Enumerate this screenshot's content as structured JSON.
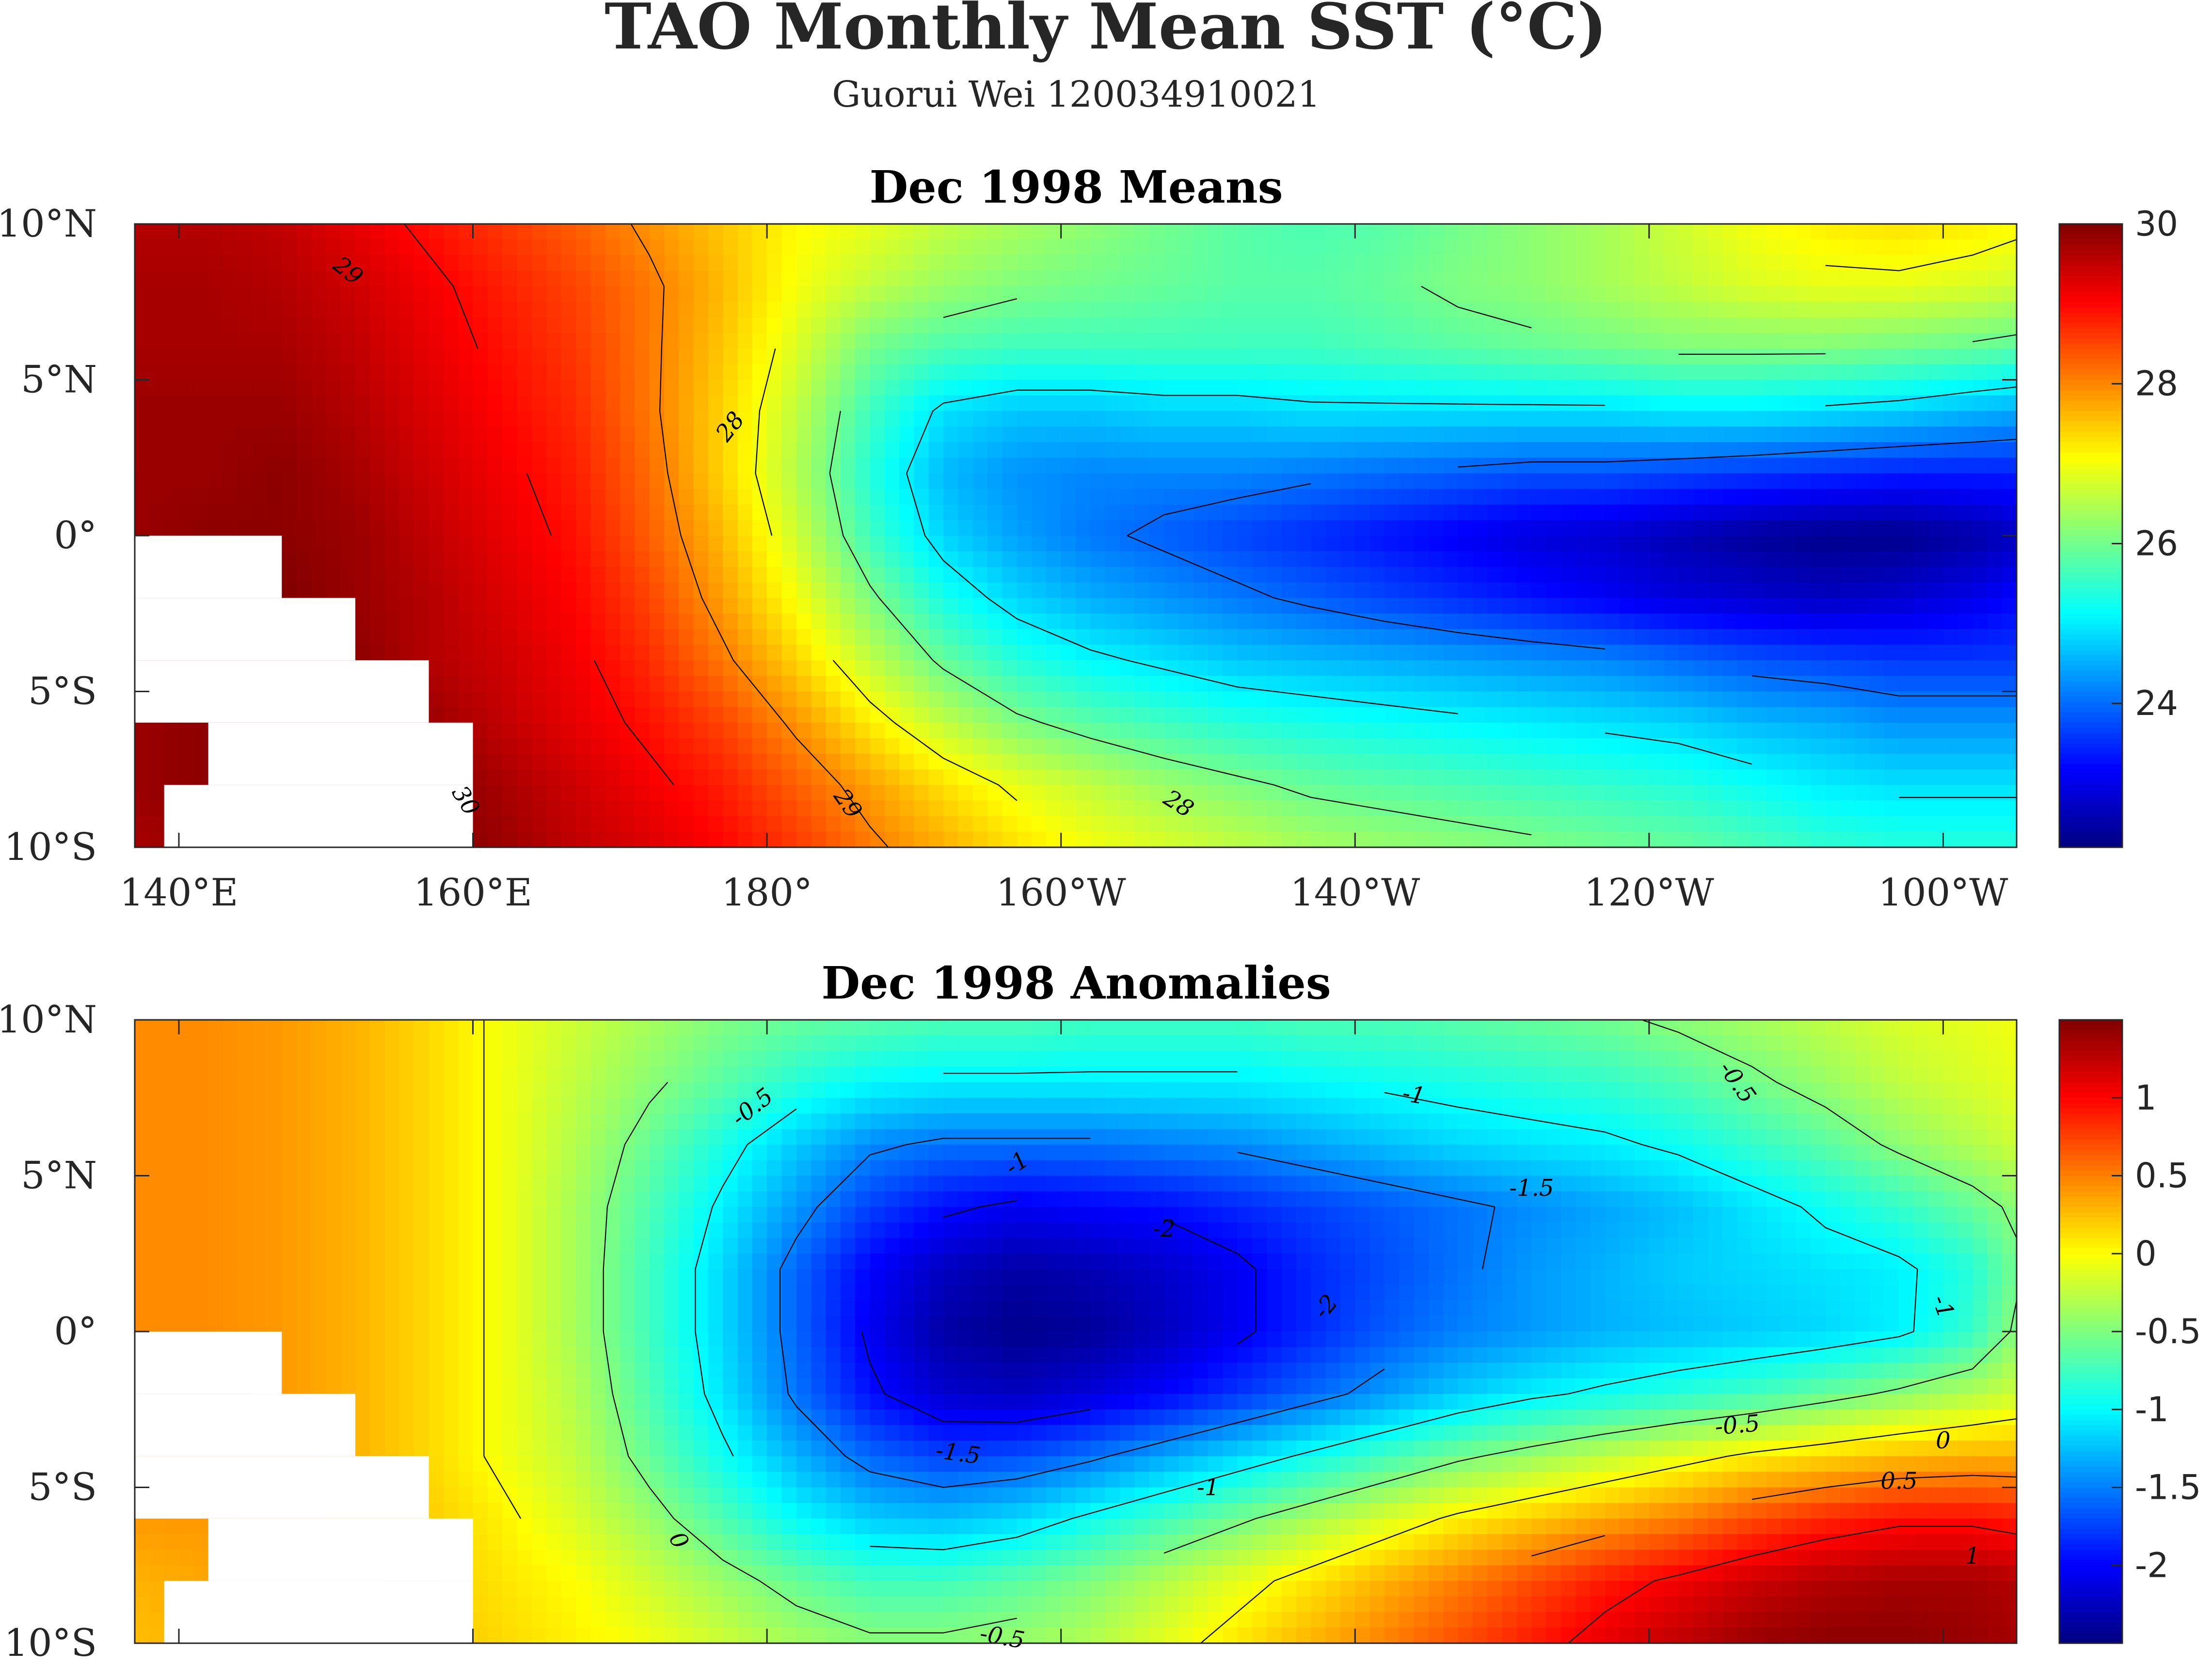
{
  "figure": {
    "title": "TAO Monthly Mean SST (°C)",
    "subtitle": "Guorui Wei 120034910021"
  },
  "chart_data": [
    {
      "type": "heatmap",
      "title": "Dec 1998 Means",
      "colormap": "jet",
      "x_ticks": [
        137,
        165,
        180,
        195,
        215,
        240,
        257
      ],
      "x_tick_labels": [
        "140°E",
        "160°E",
        "180°",
        "160°W",
        "140°W",
        "120°W",
        "100°W"
      ],
      "y_ticks": [
        10,
        5,
        0,
        -5,
        -10
      ],
      "y_tick_labels": [
        "10°N",
        "5°N",
        "0°",
        "5°S",
        "10°S"
      ],
      "xlim": [
        137,
        265
      ],
      "ylim": [
        -10,
        10
      ],
      "x_label_ticks": [
        140,
        160,
        180,
        200,
        220,
        240,
        260
      ],
      "colorbar": {
        "range": [
          22.2,
          30
        ],
        "ticks": [
          24,
          26,
          28,
          30
        ],
        "tick_labels": [
          "24",
          "26",
          "28",
          "30"
        ]
      },
      "contour_levels": [
        24,
        25,
        26,
        27,
        28,
        29,
        30
      ],
      "contour_labels": [
        {
          "text": "29",
          "lon": 151.5,
          "lat": 8.5,
          "angle": 38
        },
        {
          "text": "28",
          "lon": 177.5,
          "lat": 3.5,
          "angle": -52
        },
        {
          "text": "30",
          "lon": 159.5,
          "lat": -8.5,
          "angle": 58
        },
        {
          "text": "29",
          "lon": 185.5,
          "lat": -8.6,
          "angle": 55
        },
        {
          "text": "28",
          "lon": 208,
          "lat": -8.6,
          "angle": 32
        }
      ],
      "grid": {
        "lons": [
          137,
          142,
          147,
          152,
          157,
          162,
          167,
          172,
          177,
          182,
          187,
          192,
          197,
          202,
          207,
          212,
          217,
          222,
          227,
          232,
          237,
          242,
          247,
          252,
          257,
          262,
          265
        ],
        "lats": [
          10,
          8,
          6,
          4,
          2,
          0,
          -2,
          -4,
          -6,
          -8,
          -10
        ],
        "values": [
          [
            29.6,
            29.6,
            29.5,
            29.2,
            28.9,
            28.6,
            28.3,
            27.9,
            27.5,
            27.1,
            26.9,
            26.6,
            26.4,
            26.2,
            26.0,
            25.8,
            25.7,
            25.8,
            26.0,
            26.2,
            26.4,
            26.7,
            27.0,
            27.2,
            27.3,
            27.2,
            27.1
          ],
          [
            29.7,
            29.7,
            29.6,
            29.4,
            29.1,
            28.8,
            28.5,
            28.1,
            27.6,
            27.0,
            26.6,
            26.3,
            26.1,
            26.0,
            25.9,
            25.8,
            25.8,
            25.9,
            26.1,
            26.2,
            26.4,
            26.6,
            26.8,
            26.9,
            26.9,
            26.8,
            26.7
          ],
          [
            29.7,
            29.7,
            29.7,
            29.5,
            29.2,
            28.9,
            28.6,
            28.1,
            27.5,
            26.8,
            26.0,
            25.7,
            25.6,
            25.6,
            25.6,
            25.6,
            25.6,
            25.7,
            25.8,
            25.9,
            26.0,
            26.1,
            26.1,
            26.1,
            26.0,
            25.9,
            25.8
          ],
          [
            29.8,
            29.8,
            29.8,
            29.6,
            29.3,
            29.0,
            28.7,
            28.1,
            27.4,
            26.6,
            25.6,
            24.9,
            24.7,
            24.7,
            24.8,
            24.8,
            24.9,
            24.9,
            24.9,
            24.9,
            24.9,
            25.0,
            25.0,
            24.9,
            24.8,
            24.6,
            24.5
          ],
          [
            29.8,
            29.8,
            29.9,
            29.7,
            29.4,
            29.1,
            28.8,
            28.2,
            27.4,
            26.5,
            25.4,
            24.6,
            24.3,
            24.2,
            24.2,
            24.2,
            24.1,
            24.0,
            23.9,
            23.8,
            23.8,
            23.7,
            23.6,
            23.5,
            23.4,
            23.4,
            23.4
          ],
          [
            29.8,
            29.9,
            29.9,
            29.8,
            29.5,
            29.2,
            28.9,
            28.3,
            27.6,
            26.7,
            25.6,
            24.8,
            24.4,
            24.1,
            23.9,
            23.7,
            23.5,
            23.3,
            23.1,
            22.9,
            22.8,
            22.6,
            22.4,
            22.3,
            22.3,
            22.5,
            22.7
          ],
          [
            29.8,
            29.9,
            30.0,
            29.8,
            29.6,
            29.3,
            29.0,
            28.5,
            27.8,
            27.0,
            26.1,
            25.3,
            24.8,
            24.5,
            24.3,
            24.1,
            23.9,
            23.7,
            23.5,
            23.3,
            23.1,
            22.9,
            22.8,
            22.7,
            22.8,
            23.0,
            23.2
          ],
          [
            29.8,
            29.9,
            30.0,
            29.9,
            29.6,
            29.4,
            29.1,
            28.7,
            28.1,
            27.4,
            26.6,
            25.9,
            25.4,
            25.1,
            24.9,
            24.7,
            24.6,
            24.5,
            24.4,
            24.3,
            24.2,
            24.0,
            23.8,
            23.7,
            23.6,
            23.6,
            23.6
          ],
          [
            29.8,
            29.9,
            30.0,
            30.0,
            29.8,
            29.5,
            29.2,
            28.9,
            28.5,
            27.9,
            27.2,
            26.6,
            26.1,
            25.8,
            25.6,
            25.4,
            25.3,
            25.2,
            25.1,
            25.0,
            24.9,
            24.8,
            24.6,
            24.5,
            24.3,
            24.3,
            24.3
          ],
          [
            29.8,
            29.9,
            30.0,
            30.1,
            30.0,
            29.7,
            29.4,
            29.1,
            28.8,
            28.3,
            27.8,
            27.3,
            26.9,
            26.6,
            26.3,
            26.1,
            25.9,
            25.8,
            25.7,
            25.6,
            25.5,
            25.4,
            25.2,
            25.0,
            24.9,
            24.9,
            24.9
          ],
          [
            29.7,
            29.8,
            29.9,
            30.1,
            30.0,
            29.8,
            29.5,
            29.3,
            29.0,
            28.6,
            28.1,
            27.7,
            27.3,
            27.0,
            26.8,
            26.6,
            26.4,
            26.3,
            26.2,
            26.1,
            26.0,
            25.9,
            25.7,
            25.5,
            25.4,
            25.4,
            25.4
          ]
        ]
      },
      "land_mask_cells": [
        {
          "lon0": 137,
          "lon1": 147,
          "lat0": 0,
          "lat1": -2
        },
        {
          "lon0": 137,
          "lon1": 152,
          "lat0": -2,
          "lat1": -4
        },
        {
          "lon0": 137,
          "lon1": 157,
          "lat0": -4,
          "lat1": -6
        },
        {
          "lon0": 142,
          "lon1": 160,
          "lat0": -6,
          "lat1": -8
        },
        {
          "lon0": 139,
          "lon1": 160,
          "lat0": -8,
          "lat1": -10
        }
      ]
    },
    {
      "type": "heatmap",
      "title": "Dec 1998 Anomalies",
      "colormap": "jet",
      "x_ticks": [
        137,
        165,
        180,
        195,
        215,
        240,
        257
      ],
      "y_ticks": [
        10,
        5,
        0,
        -5,
        -10
      ],
      "y_tick_labels": [
        "10°N",
        "5°N",
        "0°",
        "5°S",
        "10°S"
      ],
      "xlim": [
        137,
        265
      ],
      "ylim": [
        -10,
        10
      ],
      "colorbar": {
        "range": [
          -2.5,
          1.5
        ],
        "ticks": [
          1,
          0.5,
          0,
          -0.5,
          -1,
          -1.5,
          -2
        ],
        "tick_labels": [
          "1",
          "0.5",
          "0",
          "-0.5",
          "-1",
          "-1.5",
          "-2"
        ]
      },
      "contour_levels": [
        -2,
        -1.5,
        -1,
        -0.5,
        0,
        0.5,
        1
      ],
      "contour_labels": [
        {
          "text": "-0.5",
          "lon": 179,
          "lat": 7.2,
          "angle": -38
        },
        {
          "text": "-1",
          "lon": 197,
          "lat": 5.4,
          "angle": -35
        },
        {
          "text": "-1",
          "lon": 224,
          "lat": 7.6,
          "angle": 10
        },
        {
          "text": "-1.5",
          "lon": 232,
          "lat": 4.6,
          "angle": 0
        },
        {
          "text": "-2",
          "lon": 207,
          "lat": 3.3,
          "angle": 0
        },
        {
          "text": "-2",
          "lon": 218,
          "lat": 0.8,
          "angle": -50
        },
        {
          "text": "-0.5",
          "lon": 246,
          "lat": 8.0,
          "angle": 55
        },
        {
          "text": "-1",
          "lon": 260,
          "lat": 0.8,
          "angle": 70
        },
        {
          "text": "-1.5",
          "lon": 193,
          "lat": -3.9,
          "angle": 8
        },
        {
          "text": "-0.5",
          "lon": 246,
          "lat": -3.0,
          "angle": -5
        },
        {
          "text": "0",
          "lon": 260,
          "lat": -3.5,
          "angle": 0
        },
        {
          "text": "-1",
          "lon": 210,
          "lat": -5.0,
          "angle": 0
        },
        {
          "text": "0.5",
          "lon": 257,
          "lat": -4.8,
          "angle": 0
        },
        {
          "text": "1",
          "lon": 262,
          "lat": -7.2,
          "angle": 0
        },
        {
          "text": "0",
          "lon": 174,
          "lat": -6.7,
          "angle": 60
        },
        {
          "text": "-0.5",
          "lon": 196,
          "lat": -9.8,
          "angle": 10
        }
      ],
      "grid": {
        "lons": [
          137,
          142,
          147,
          152,
          157,
          162,
          167,
          172,
          177,
          182,
          187,
          192,
          197,
          202,
          207,
          212,
          217,
          222,
          227,
          232,
          237,
          242,
          247,
          252,
          257,
          262,
          265
        ],
        "lats": [
          10,
          8,
          6,
          4,
          2,
          0,
          -2,
          -4,
          -6,
          -8,
          -10
        ],
        "values": [
          [
            0.45,
            0.45,
            0.4,
            0.3,
            0.15,
            -0.05,
            -0.2,
            -0.35,
            -0.5,
            -0.6,
            -0.65,
            -0.7,
            -0.7,
            -0.75,
            -0.75,
            -0.75,
            -0.7,
            -0.7,
            -0.65,
            -0.6,
            -0.55,
            -0.45,
            -0.35,
            -0.25,
            -0.15,
            -0.1,
            -0.05
          ],
          [
            0.45,
            0.45,
            0.4,
            0.3,
            0.15,
            -0.05,
            -0.25,
            -0.45,
            -0.65,
            -0.85,
            -1.0,
            -1.05,
            -1.05,
            -1.05,
            -1.05,
            -1.05,
            -1.0,
            -0.95,
            -0.9,
            -0.85,
            -0.8,
            -0.7,
            -0.55,
            -0.4,
            -0.25,
            -0.15,
            -0.1
          ],
          [
            0.45,
            0.45,
            0.4,
            0.3,
            0.15,
            -0.05,
            -0.3,
            -0.6,
            -0.9,
            -1.2,
            -1.45,
            -1.55,
            -1.55,
            -1.55,
            -1.5,
            -1.45,
            -1.35,
            -1.25,
            -1.15,
            -1.1,
            -1.05,
            -0.95,
            -0.8,
            -0.65,
            -0.45,
            -0.3,
            -0.2
          ],
          [
            0.45,
            0.45,
            0.4,
            0.3,
            0.15,
            -0.05,
            -0.35,
            -0.7,
            -1.05,
            -1.4,
            -1.75,
            -1.95,
            -2.05,
            -2.0,
            -1.95,
            -1.85,
            -1.75,
            -1.65,
            -1.55,
            -1.45,
            -1.35,
            -1.25,
            -1.1,
            -0.95,
            -0.8,
            -0.6,
            -0.45
          ],
          [
            0.45,
            0.45,
            0.4,
            0.3,
            0.15,
            -0.05,
            -0.35,
            -0.75,
            -1.15,
            -1.6,
            -2.0,
            -2.25,
            -2.35,
            -2.3,
            -2.2,
            -2.05,
            -1.85,
            -1.7,
            -1.55,
            -1.4,
            -1.3,
            -1.2,
            -1.15,
            -1.1,
            -1.05,
            -0.85,
            -0.55
          ],
          [
            0.45,
            0.45,
            0.4,
            0.3,
            0.15,
            -0.05,
            -0.35,
            -0.75,
            -1.15,
            -1.6,
            -2.05,
            -2.35,
            -2.45,
            -2.4,
            -2.25,
            -2.05,
            -1.85,
            -1.65,
            -1.5,
            -1.4,
            -1.3,
            -1.25,
            -1.2,
            -1.15,
            -1.05,
            -0.8,
            -0.45
          ],
          [
            0.45,
            0.45,
            0.4,
            0.3,
            0.15,
            -0.05,
            -0.3,
            -0.7,
            -1.1,
            -1.55,
            -1.95,
            -2.2,
            -2.25,
            -2.15,
            -2.0,
            -1.8,
            -1.6,
            -1.4,
            -1.2,
            -1.05,
            -0.95,
            -0.85,
            -0.75,
            -0.6,
            -0.45,
            -0.3,
            -0.2
          ],
          [
            0.4,
            0.4,
            0.35,
            0.3,
            0.15,
            -0.05,
            -0.25,
            -0.6,
            -0.95,
            -1.3,
            -1.6,
            -1.75,
            -1.7,
            -1.55,
            -1.35,
            -1.15,
            -0.95,
            -0.75,
            -0.55,
            -0.4,
            -0.25,
            -0.1,
            0.05,
            0.15,
            0.25,
            0.3,
            0.3
          ],
          [
            0.4,
            0.4,
            0.35,
            0.3,
            0.2,
            0.05,
            -0.15,
            -0.4,
            -0.7,
            -1.0,
            -1.2,
            -1.25,
            -1.15,
            -0.95,
            -0.75,
            -0.55,
            -0.35,
            -0.15,
            0.05,
            0.2,
            0.35,
            0.5,
            0.7,
            0.85,
            0.95,
            0.95,
            0.9
          ],
          [
            0.3,
            0.35,
            0.35,
            0.3,
            0.2,
            0.1,
            0.0,
            -0.2,
            -0.4,
            -0.6,
            -0.75,
            -0.75,
            -0.65,
            -0.5,
            -0.3,
            -0.1,
            0.1,
            0.3,
            0.5,
            0.7,
            0.9,
            1.05,
            1.2,
            1.3,
            1.35,
            1.35,
            1.3
          ],
          [
            0.25,
            0.3,
            0.3,
            0.3,
            0.25,
            0.15,
            0.05,
            -0.05,
            -0.2,
            -0.35,
            -0.45,
            -0.45,
            -0.4,
            -0.3,
            -0.1,
            0.1,
            0.3,
            0.5,
            0.7,
            0.9,
            1.1,
            1.25,
            1.4,
            1.45,
            1.45,
            1.4,
            1.35
          ]
        ]
      },
      "land_mask_cells": [
        {
          "lon0": 137,
          "lon1": 147,
          "lat0": 0,
          "lat1": -2
        },
        {
          "lon0": 137,
          "lon1": 152,
          "lat0": -2,
          "lat1": -4
        },
        {
          "lon0": 137,
          "lon1": 157,
          "lat0": -4,
          "lat1": -6
        },
        {
          "lon0": 142,
          "lon1": 160,
          "lat0": -6,
          "lat1": -8
        },
        {
          "lon0": 139,
          "lon1": 160,
          "lat0": -8,
          "lat1": -10
        }
      ]
    }
  ]
}
